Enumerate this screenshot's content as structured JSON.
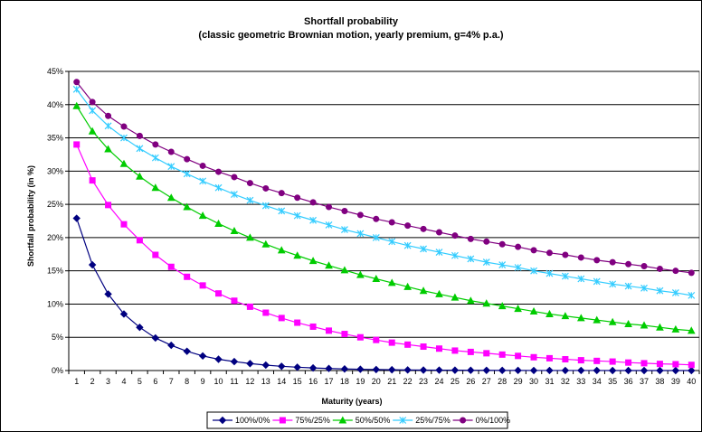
{
  "chart_data": {
    "type": "line",
    "title": "Shortfall probability",
    "subtitle": "(classic geometric Brownian motion, yearly premium, g=4% p.a.)",
    "xlabel": "Maturity (years)",
    "ylabel": "Shortfall probability (in %)",
    "ylim": [
      0,
      45
    ],
    "y_ticks": [
      "0%",
      "5%",
      "10%",
      "15%",
      "20%",
      "25%",
      "30%",
      "35%",
      "40%",
      "45%"
    ],
    "x": [
      1,
      2,
      3,
      4,
      5,
      6,
      7,
      8,
      9,
      10,
      11,
      12,
      13,
      14,
      15,
      16,
      17,
      18,
      19,
      20,
      21,
      22,
      23,
      24,
      25,
      26,
      27,
      28,
      29,
      30,
      31,
      32,
      33,
      34,
      35,
      36,
      37,
      38,
      39,
      40
    ],
    "x_ticks": [
      "1",
      "2",
      "3",
      "4",
      "5",
      "6",
      "7",
      "8",
      "9",
      "10",
      "11",
      "12",
      "13",
      "14",
      "15",
      "16",
      "17",
      "18",
      "19",
      "20",
      "21",
      "22",
      "23",
      "24",
      "25",
      "26",
      "27",
      "28",
      "29",
      "30",
      "31",
      "32",
      "33",
      "34",
      "35",
      "36",
      "37",
      "38",
      "39",
      "40"
    ],
    "grid": "horizontal",
    "legend_position": "bottom",
    "series": [
      {
        "name": "100%/0%",
        "color": "#000080",
        "marker": "diamond",
        "values": [
          22.9,
          15.9,
          11.5,
          8.5,
          6.5,
          4.9,
          3.8,
          2.9,
          2.2,
          1.7,
          1.35,
          1.05,
          0.82,
          0.64,
          0.5,
          0.39,
          0.31,
          0.24,
          0.19,
          0.15,
          0.12,
          0.09,
          0.07,
          0.06,
          0.05,
          0.04,
          0.03,
          0.02,
          0.02,
          0.01,
          0.01,
          0.01,
          0.01,
          0.01,
          0.0,
          0.0,
          0.0,
          0.0,
          0.0,
          0.0
        ]
      },
      {
        "name": "75%/25%",
        "color": "#FF00FF",
        "marker": "square",
        "values": [
          34.0,
          28.6,
          24.9,
          22.0,
          19.6,
          17.4,
          15.6,
          14.1,
          12.8,
          11.6,
          10.5,
          9.6,
          8.7,
          7.9,
          7.2,
          6.6,
          6.0,
          5.5,
          5.0,
          4.6,
          4.2,
          3.9,
          3.6,
          3.3,
          3.0,
          2.8,
          2.6,
          2.4,
          2.2,
          2.0,
          1.85,
          1.7,
          1.55,
          1.45,
          1.35,
          1.2,
          1.1,
          1.0,
          0.95,
          0.85
        ]
      },
      {
        "name": "50%/50%",
        "color": "#00CC00",
        "marker": "triangle",
        "values": [
          39.8,
          36.0,
          33.3,
          31.1,
          29.2,
          27.5,
          26.0,
          24.6,
          23.3,
          22.1,
          21.0,
          20.0,
          19.0,
          18.1,
          17.3,
          16.5,
          15.8,
          15.1,
          14.4,
          13.8,
          13.2,
          12.6,
          12.0,
          11.5,
          11.0,
          10.5,
          10.1,
          9.7,
          9.3,
          8.9,
          8.5,
          8.2,
          7.9,
          7.6,
          7.3,
          7.0,
          6.8,
          6.5,
          6.2,
          6.0
        ]
      },
      {
        "name": "25%/75%",
        "color": "#33CCFF",
        "marker": "asterisk",
        "values": [
          42.3,
          39.1,
          36.8,
          35.0,
          33.4,
          32.0,
          30.7,
          29.6,
          28.5,
          27.5,
          26.5,
          25.6,
          24.8,
          24.0,
          23.3,
          22.6,
          21.9,
          21.2,
          20.6,
          20.0,
          19.4,
          18.8,
          18.3,
          17.8,
          17.3,
          16.8,
          16.3,
          15.9,
          15.5,
          15.0,
          14.6,
          14.2,
          13.8,
          13.4,
          13.0,
          12.7,
          12.4,
          12.0,
          11.7,
          11.3
        ]
      },
      {
        "name": "0%/100%",
        "color": "#800080",
        "marker": "circle",
        "values": [
          43.4,
          40.4,
          38.3,
          36.7,
          35.3,
          34.0,
          32.9,
          31.8,
          30.8,
          29.9,
          29.1,
          28.2,
          27.4,
          26.7,
          26.0,
          25.3,
          24.6,
          24.0,
          23.4,
          22.8,
          22.3,
          21.8,
          21.3,
          20.8,
          20.3,
          19.8,
          19.4,
          19.0,
          18.6,
          18.1,
          17.7,
          17.4,
          17.0,
          16.6,
          16.3,
          16.0,
          15.7,
          15.3,
          15.0,
          14.7
        ]
      }
    ]
  }
}
